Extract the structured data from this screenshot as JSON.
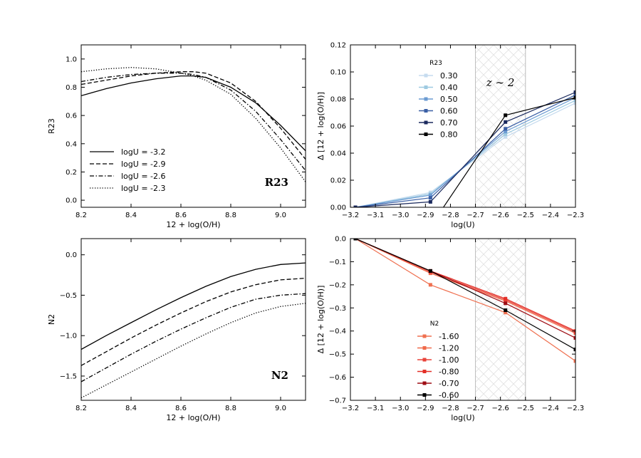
{
  "chart_data": [
    {
      "id": "r23_curves",
      "type": "line",
      "panel_label": "R23",
      "xlabel": "12 + log(O/H)",
      "ylabel": "R23",
      "xlim": [
        8.2,
        9.1
      ],
      "ylim": [
        -0.05,
        1.1
      ],
      "xticks": [
        "8.2",
        "8.4",
        "8.6",
        "8.8",
        "9.0"
      ],
      "yticks": [
        "0.0",
        "0.2",
        "0.4",
        "0.6",
        "0.8",
        "1.0"
      ],
      "legend": "lower-left",
      "series": [
        {
          "name": "logU = -3.2",
          "dash": "solid",
          "x": [
            8.2,
            8.3,
            8.4,
            8.5,
            8.6,
            8.65,
            8.7,
            8.8,
            8.9,
            9.0,
            9.1
          ],
          "y": [
            0.74,
            0.79,
            0.83,
            0.86,
            0.88,
            0.88,
            0.87,
            0.8,
            0.69,
            0.53,
            0.35
          ]
        },
        {
          "name": "logU = -2.9",
          "dash": "dashed",
          "x": [
            8.2,
            8.3,
            8.4,
            8.5,
            8.6,
            8.65,
            8.7,
            8.8,
            8.9,
            9.0,
            9.1
          ],
          "y": [
            0.82,
            0.85,
            0.88,
            0.9,
            0.91,
            0.91,
            0.9,
            0.83,
            0.7,
            0.51,
            0.29
          ]
        },
        {
          "name": "logU = -2.6",
          "dash": "dashdot",
          "x": [
            8.2,
            8.3,
            8.4,
            8.5,
            8.6,
            8.65,
            8.7,
            8.8,
            8.9,
            9.0,
            9.1
          ],
          "y": [
            0.84,
            0.87,
            0.89,
            0.9,
            0.9,
            0.89,
            0.87,
            0.78,
            0.63,
            0.43,
            0.21
          ]
        },
        {
          "name": "logU = -2.3",
          "dash": "dotted",
          "x": [
            8.2,
            8.3,
            8.4,
            8.5,
            8.6,
            8.65,
            8.7,
            8.8,
            8.9,
            9.0,
            9.1
          ],
          "y": [
            0.91,
            0.93,
            0.94,
            0.93,
            0.9,
            0.88,
            0.85,
            0.75,
            0.58,
            0.37,
            0.13
          ]
        }
      ]
    },
    {
      "id": "r23_delta",
      "type": "line",
      "xlabel": "log(U)",
      "ylabel": "Δ [12 + log(O/H)]",
      "xlim": [
        -3.2,
        -2.3
      ],
      "ylim": [
        0.0,
        0.12
      ],
      "xticks": [
        "−3.2",
        "−3.1",
        "−3.0",
        "−2.9",
        "−2.8",
        "−2.7",
        "−2.6",
        "−2.5",
        "−2.4",
        "−2.3"
      ],
      "yticks": [
        "0.00",
        "0.02",
        "0.04",
        "0.06",
        "0.08",
        "0.10",
        "0.12"
      ],
      "annotation": "z ∼ 2",
      "shaded_range": [
        -2.7,
        -2.5
      ],
      "legend_title": "R23",
      "legend": "upper-left",
      "series": [
        {
          "name": "0.30",
          "color": "#c6dbef",
          "x": [
            -3.18,
            -2.88,
            -2.58,
            -2.3
          ],
          "y": [
            0.0,
            0.011,
            0.052,
            0.077
          ]
        },
        {
          "name": "0.40",
          "color": "#9ecae1",
          "x": [
            -3.18,
            -2.88,
            -2.58,
            -2.3
          ],
          "y": [
            0.0,
            0.01,
            0.054,
            0.079
          ]
        },
        {
          "name": "0.50",
          "color": "#6b9bd2",
          "x": [
            -3.18,
            -2.88,
            -2.58,
            -2.3
          ],
          "y": [
            0.0,
            0.009,
            0.056,
            0.081
          ]
        },
        {
          "name": "0.60",
          "color": "#3a5fa5",
          "x": [
            -3.18,
            -2.88,
            -2.58,
            -2.3
          ],
          "y": [
            0.0,
            0.007,
            0.058,
            0.083
          ]
        },
        {
          "name": "0.70",
          "color": "#1b2a5e",
          "x": [
            -3.18,
            -2.88,
            -2.58,
            -2.3
          ],
          "y": [
            0.0,
            0.004,
            0.063,
            0.085
          ]
        },
        {
          "name": "0.80",
          "color": "#000000",
          "x": [
            -3.18,
            -2.85,
            -2.58,
            -2.3
          ],
          "y": [
            -0.006,
            -0.006,
            0.068,
            0.081
          ]
        }
      ]
    },
    {
      "id": "n2_curves",
      "type": "line",
      "panel_label": "N2",
      "xlabel": "12 + log(O/H)",
      "ylabel": "N2",
      "xlim": [
        8.2,
        9.1
      ],
      "ylim": [
        -1.8,
        0.2
      ],
      "xticks": [
        "8.2",
        "8.4",
        "8.6",
        "8.8",
        "9.0"
      ],
      "yticks": [
        "−1.5",
        "−1.0",
        "−0.5",
        "0.0"
      ],
      "series": [
        {
          "name": "logU = -3.2",
          "dash": "solid",
          "x": [
            8.2,
            8.3,
            8.4,
            8.5,
            8.6,
            8.7,
            8.8,
            8.9,
            9.0,
            9.1
          ],
          "y": [
            -1.17,
            -1.0,
            -0.84,
            -0.68,
            -0.53,
            -0.39,
            -0.27,
            -0.18,
            -0.12,
            -0.1
          ]
        },
        {
          "name": "logU = -2.9",
          "dash": "dashed",
          "x": [
            8.2,
            8.3,
            8.4,
            8.5,
            8.6,
            8.7,
            8.8,
            8.9,
            9.0,
            9.1
          ],
          "y": [
            -1.37,
            -1.2,
            -1.03,
            -0.87,
            -0.72,
            -0.58,
            -0.46,
            -0.37,
            -0.31,
            -0.29
          ]
        },
        {
          "name": "logU = -2.6",
          "dash": "dashdot",
          "x": [
            8.2,
            8.3,
            8.4,
            8.5,
            8.6,
            8.7,
            8.8,
            8.9,
            9.0,
            9.1
          ],
          "y": [
            -1.57,
            -1.4,
            -1.23,
            -1.07,
            -0.92,
            -0.78,
            -0.65,
            -0.55,
            -0.5,
            -0.48
          ]
        },
        {
          "name": "logU = -2.3",
          "dash": "dotted",
          "x": [
            8.2,
            8.3,
            8.4,
            8.5,
            8.6,
            8.7,
            8.8,
            8.9,
            9.0,
            9.1
          ],
          "y": [
            -1.77,
            -1.61,
            -1.45,
            -1.29,
            -1.13,
            -0.98,
            -0.84,
            -0.72,
            -0.64,
            -0.6
          ]
        }
      ]
    },
    {
      "id": "n2_delta",
      "type": "line",
      "xlabel": "log(U)",
      "ylabel": "Δ [12 + log(O/H)]",
      "xlim": [
        -3.2,
        -2.3
      ],
      "ylim": [
        -0.7,
        0.0
      ],
      "xticks": [
        "−3.2",
        "−3.1",
        "−3.0",
        "−2.9",
        "−2.8",
        "−2.7",
        "−2.6",
        "−2.5",
        "−2.4",
        "−2.3"
      ],
      "yticks": [
        "−0.7",
        "−0.6",
        "−0.5",
        "−0.4",
        "−0.3",
        "−0.2",
        "−0.1",
        "0.0"
      ],
      "shaded_range": [
        -2.7,
        -2.5
      ],
      "legend_title": "N2",
      "legend": "lower-center",
      "series": [
        {
          "name": "-1.60",
          "color": "#ef7050",
          "x": [
            -3.18,
            -2.88,
            -2.58,
            -2.3
          ],
          "y": [
            0.0,
            -0.2,
            -0.32,
            -0.53
          ]
        },
        {
          "name": "-1.20",
          "color": "#f06a4a",
          "x": [
            -3.18,
            -2.88,
            -2.58,
            -2.3
          ],
          "y": [
            0.0,
            -0.15,
            -0.27,
            -0.41
          ]
        },
        {
          "name": "-1.00",
          "color": "#e8433a",
          "x": [
            -3.18,
            -2.88,
            -2.58,
            -2.3
          ],
          "y": [
            0.0,
            -0.145,
            -0.265,
            -0.405
          ]
        },
        {
          "name": "-0.80",
          "color": "#e32f27",
          "x": [
            -3.18,
            -2.88,
            -2.58,
            -2.3
          ],
          "y": [
            0.0,
            -0.14,
            -0.26,
            -0.4
          ]
        },
        {
          "name": "-0.70",
          "color": "#9e0d14",
          "x": [
            -3.18,
            -2.88,
            -2.58,
            -2.3
          ],
          "y": [
            0.0,
            -0.14,
            -0.28,
            -0.43
          ]
        },
        {
          "name": "-0.60",
          "color": "#000000",
          "x": [
            -3.18,
            -2.88,
            -2.58,
            -2.3
          ],
          "y": [
            0.0,
            -0.14,
            -0.31,
            -0.48
          ]
        }
      ]
    }
  ]
}
